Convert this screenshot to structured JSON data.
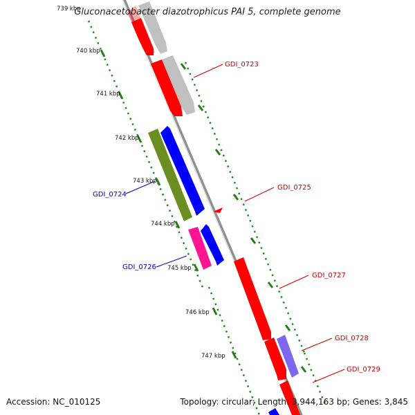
{
  "title": "Gluconacetobacter diazotrophicus PAI 5, complete genome",
  "footer": {
    "accession": "Accession: NC_010125",
    "topology": "Topology: circular; Length: 3,944,163 bp; Genes: 3,845"
  },
  "scale": {
    "unit": "kbp",
    "tick_labels": [
      "739 kbp",
      "740 kbp",
      "741 kbp",
      "742 kbp",
      "743 kbp",
      "744 kbp",
      "745 kbp",
      "746 kbp",
      "747 kbp"
    ]
  },
  "gene_labels": [
    {
      "name": "GDI_0723",
      "side": "right",
      "color": "#cc0000"
    },
    {
      "name": "GDI_0724",
      "side": "left",
      "color": "#0000cc"
    },
    {
      "name": "GDI_0725",
      "side": "right",
      "color": "#cc0000"
    },
    {
      "name": "GDI_0726",
      "side": "left",
      "color": "#0000cc"
    },
    {
      "name": "GDI_0727",
      "side": "right",
      "color": "#cc0000"
    },
    {
      "name": "GDI_0728",
      "side": "right",
      "color": "#cc0000"
    },
    {
      "name": "GDI_0729",
      "side": "right",
      "color": "#cc0000"
    }
  ],
  "colors": {
    "backbone": "#909090",
    "tick_green": "#2a7a1a",
    "tick_dot": "#228b22",
    "red_feature": "#ff0000",
    "grey_feature": "#c0c0c0",
    "blue_feature": "#0000ff",
    "olive_feature": "#6b8e23",
    "pink_feature": "#ff1493",
    "lavender_feature": "#7b68ee"
  }
}
